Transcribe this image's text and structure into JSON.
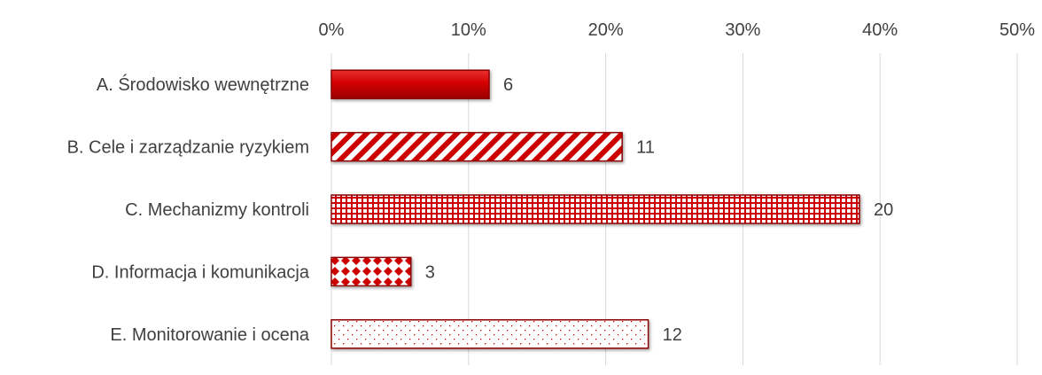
{
  "chart_data": {
    "type": "bar",
    "orientation": "horizontal",
    "title": "",
    "xlabel": "",
    "ylabel": "",
    "categories": [
      "A. Środowisko wewnętrzne",
      "B. Cele i zarządzanie ryzykiem",
      "C. Mechanizmy kontroli",
      "D. Informacja i komunikacja",
      "E. Monitorowanie i ocena"
    ],
    "values": [
      11.5,
      21.2,
      38.5,
      5.8,
      23.1
    ],
    "data_labels": [
      "6",
      "11",
      "20",
      "3",
      "12"
    ],
    "xlim": [
      0,
      50
    ],
    "x_ticks": [
      "0%",
      "10%",
      "20%",
      "30%",
      "40%",
      "50%"
    ],
    "x_axis_position": "top",
    "grid": "vertical",
    "legend": "none",
    "bar_styles": [
      "solid",
      "diagonal-stripes",
      "grid",
      "diamonds",
      "dots"
    ],
    "colors": {
      "bar": "#cc0000",
      "bar_dark": "#8b0000",
      "gridline": "#d9d9d9",
      "text": "#404040"
    }
  }
}
